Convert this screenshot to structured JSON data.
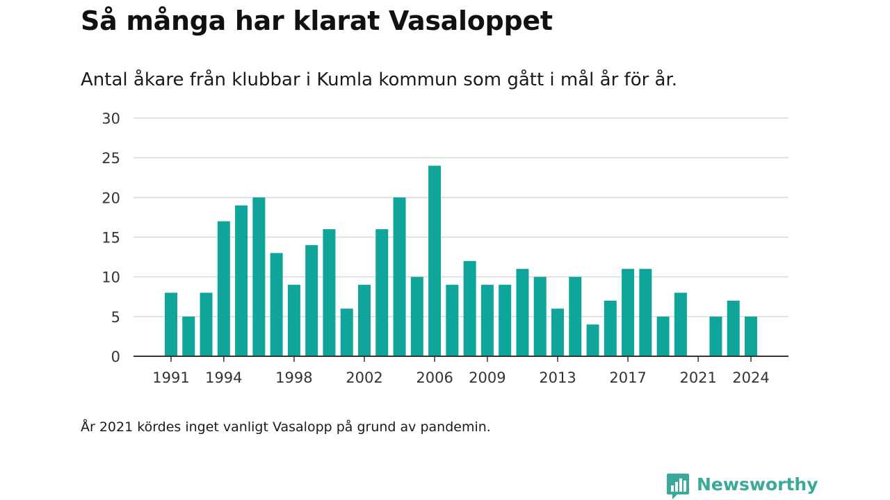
{
  "header": {
    "title": "Så många har klarat Vasaloppet",
    "subtitle": "Antal åkare från klubbar i Kumla kommun som gått i mål år för år."
  },
  "footnote": "År 2021 kördes inget vanligt Vasalopp på grund av pandemin.",
  "brand": {
    "name": "Newsworthy",
    "icon": "newsworthy-logo-icon",
    "color": "#3aa99a"
  },
  "colors": {
    "bar": "#0fa59a",
    "grid": "#d9d9d9",
    "axis": "#333333"
  },
  "chart_data": {
    "type": "bar",
    "x": [
      1991,
      1992,
      1993,
      1994,
      1995,
      1996,
      1997,
      1998,
      1999,
      2000,
      2001,
      2002,
      2003,
      2004,
      2005,
      2006,
      2007,
      2008,
      2009,
      2010,
      2011,
      2012,
      2013,
      2014,
      2015,
      2016,
      2017,
      2018,
      2019,
      2020,
      2021,
      2022,
      2023,
      2024
    ],
    "values": [
      8,
      5,
      8,
      17,
      19,
      20,
      13,
      9,
      14,
      16,
      6,
      9,
      16,
      20,
      10,
      24,
      9,
      12,
      9,
      9,
      11,
      10,
      6,
      10,
      4,
      7,
      11,
      11,
      5,
      8,
      0,
      5,
      7,
      5
    ],
    "x_tick_labels": [
      "1991",
      "1994",
      "1998",
      "2002",
      "2006",
      "2009",
      "2013",
      "2017",
      "2021",
      "2024"
    ],
    "y_ticks": [
      0,
      5,
      10,
      15,
      20,
      25,
      30
    ],
    "ylim": [
      0,
      30
    ],
    "grid": true,
    "legend": "none"
  }
}
